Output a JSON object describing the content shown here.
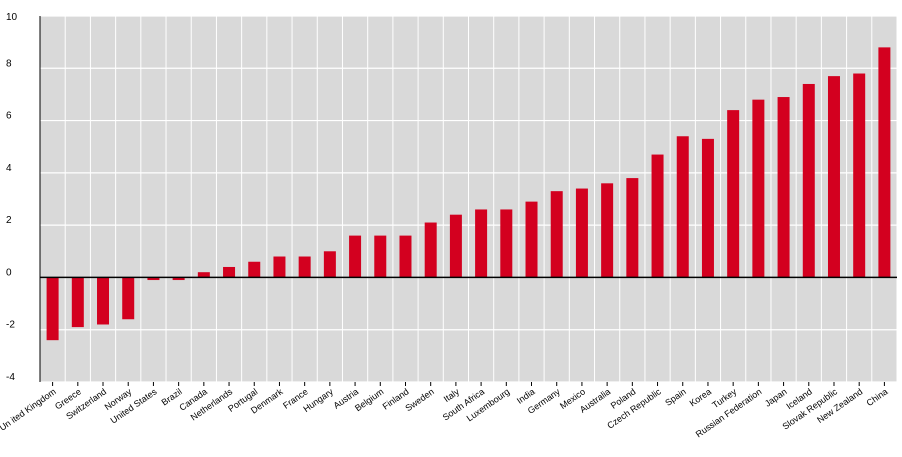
{
  "chart_data": {
    "type": "bar",
    "categories": [
      "Un ited Kingdom",
      "Greece",
      "Switzerland",
      "Norway",
      "United States",
      "Brazil",
      "Canada",
      "Netherlands",
      "Portugal",
      "Denmark",
      "France",
      "Hungary",
      "Austria",
      "Belgium",
      "Finland",
      "Sweden",
      "Italy",
      "South Africa",
      "Luxembourg",
      "India",
      "Germany",
      "Mexico",
      "Australia",
      "Poland",
      "Czech Republic",
      "Spain",
      "Korea",
      "Turkey",
      "Russian Federation",
      "Japan",
      "Iceland",
      "Slovak Republic",
      "New Zealand",
      "China"
    ],
    "values": [
      -2.4,
      -1.9,
      -1.8,
      -1.6,
      -0.1,
      -0.1,
      0.2,
      0.4,
      0.6,
      0.8,
      0.8,
      1.0,
      1.6,
      1.6,
      1.6,
      2.1,
      2.4,
      2.6,
      2.6,
      2.9,
      3.3,
      3.4,
      3.6,
      3.8,
      4.7,
      5.4,
      5.3,
      6.4,
      6.8,
      6.9,
      7.4,
      7.7,
      7.8,
      8.8
    ],
    "ylim": [
      -4,
      10
    ],
    "yticks": [
      "-4",
      "-2",
      "0",
      "2",
      "4",
      "6",
      "8",
      "10"
    ],
    "title": "",
    "xlabel": "",
    "ylabel": "",
    "grid": true,
    "colors": {
      "bar": "#d3001f",
      "plot_background": "#d9d9d9",
      "grid": "#ffffff",
      "zero_line": "#000000"
    }
  }
}
